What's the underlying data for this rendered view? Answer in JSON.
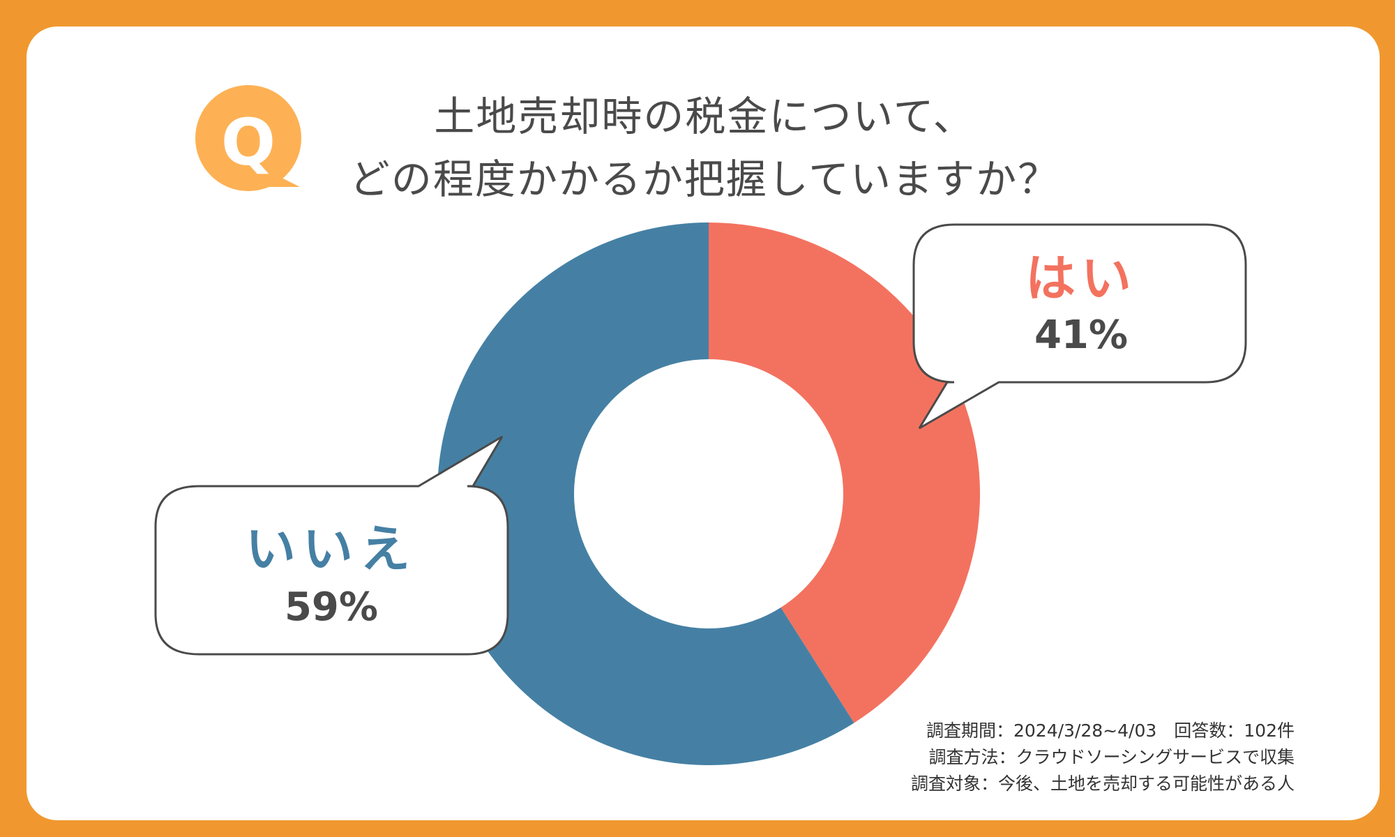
{
  "title": {
    "line1": "土地売却時の税金について、",
    "line2": "どの程度かかるか把握していますか？"
  },
  "badge": {
    "letter": "Q"
  },
  "colors": {
    "background": "#F0982F",
    "badge": "#FDB154",
    "yes": "#F3725F",
    "no": "#4580A4",
    "text": "#4a4a4a"
  },
  "callouts": {
    "yes": {
      "label": "はい",
      "percent_text": "41%"
    },
    "no": {
      "label": "いいえ",
      "percent_text": "59%"
    }
  },
  "notes": {
    "period": "調査期間：2024/3/28~4/03　回答数：102件",
    "method": "調査方法：クラウドソーシングサービスで収集",
    "target": "調査対象：今後、土地を売却する可能性がある人"
  },
  "chart_data": {
    "type": "pie",
    "donut": true,
    "title": "土地売却時の税金について、どの程度かかるか把握していますか？",
    "categories": [
      "はい",
      "いいえ"
    ],
    "values": [
      41,
      59
    ],
    "unit": "%",
    "colors": [
      "#F3725F",
      "#4580A4"
    ],
    "start_angle": "12 o'clock",
    "direction": "clockwise",
    "sample_size": 102
  }
}
